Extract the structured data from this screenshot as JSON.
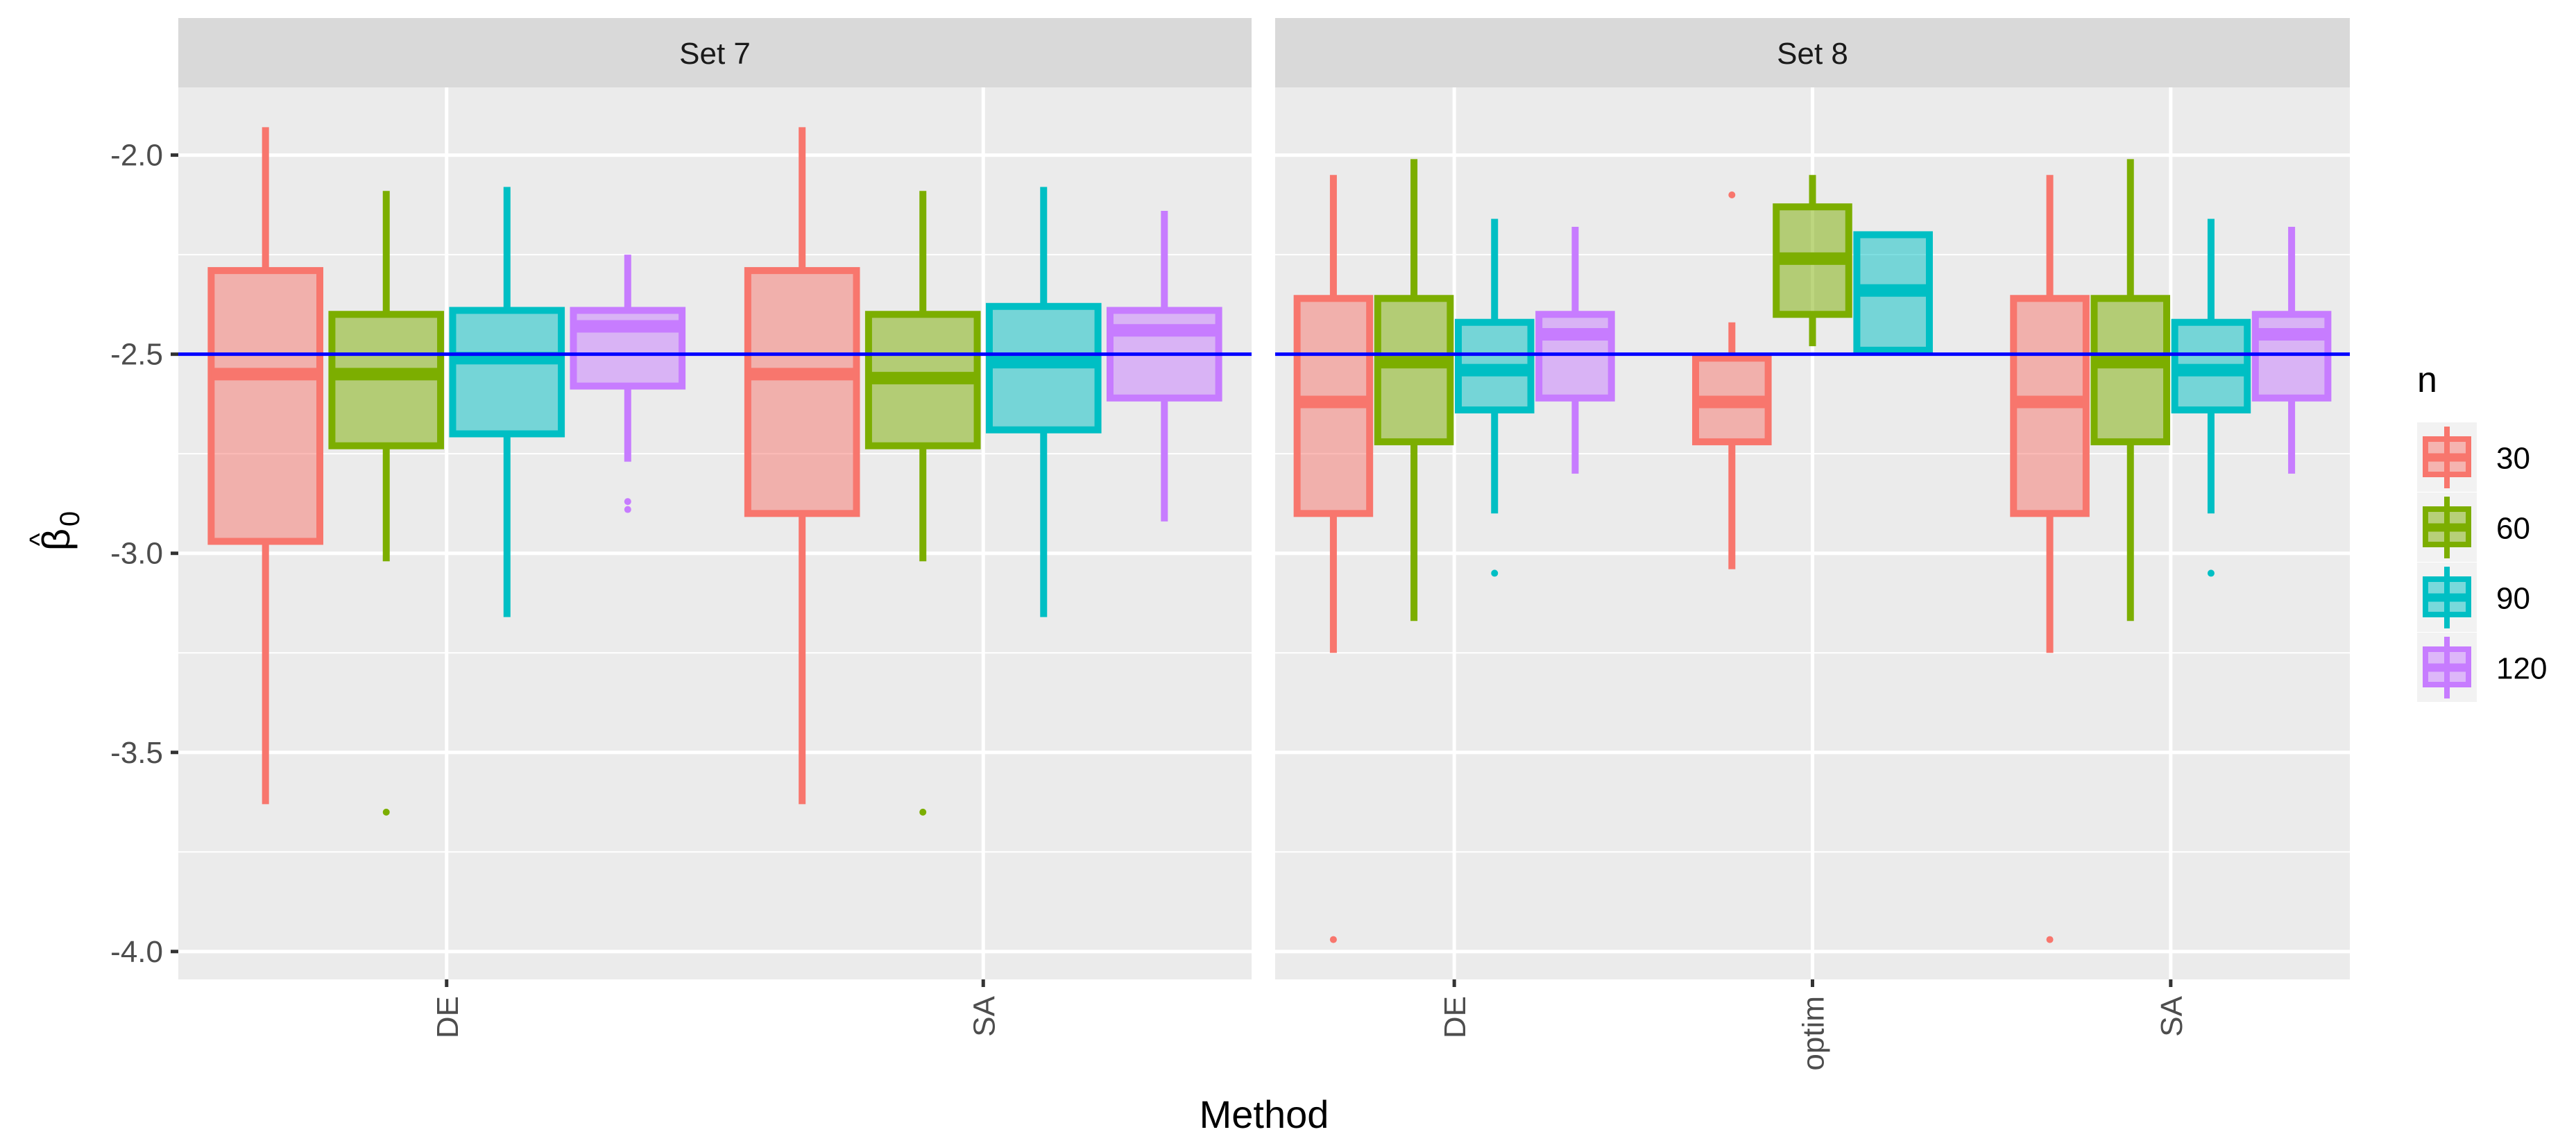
{
  "chart_data": {
    "type": "boxplot",
    "xlabel": "Method",
    "ylabel_base": "β",
    "ylabel_hat": "^",
    "ylabel_sub": "0",
    "ylim": [
      -4.07,
      -1.83
    ],
    "y_ticks": [
      -2.0,
      -2.5,
      -3.0,
      -3.5,
      -4.0
    ],
    "y_tick_labels": [
      "-2.0",
      "-2.5",
      "-3.0",
      "-3.5",
      "-4.0"
    ],
    "y_minor_ticks": [
      -2.25,
      -2.75,
      -3.25,
      -3.75
    ],
    "reference_line": {
      "y": -2.5,
      "color": "#0000ff"
    },
    "legend": {
      "title": "n",
      "position": "right",
      "entries": [
        {
          "label": "30",
          "color": "#F8766D"
        },
        {
          "label": "60",
          "color": "#7CAE00"
        },
        {
          "label": "90",
          "color": "#00BFC4"
        },
        {
          "label": "120",
          "color": "#C77CFF"
        }
      ]
    },
    "panels": [
      {
        "title": "Set 7",
        "categories": [
          "DE",
          "SA"
        ],
        "groups": [
          {
            "method": "DE",
            "boxes": [
              {
                "n": "30",
                "min": -3.63,
                "q1": -2.97,
                "median": -2.55,
                "q3": -2.29,
                "max": -1.93,
                "outliers": []
              },
              {
                "n": "60",
                "min": -3.02,
                "q1": -2.73,
                "median": -2.55,
                "q3": -2.4,
                "max": -2.09,
                "outliers": [
                  -3.65
                ]
              },
              {
                "n": "90",
                "min": -3.16,
                "q1": -2.7,
                "median": -2.51,
                "q3": -2.39,
                "max": -2.08,
                "outliers": []
              },
              {
                "n": "120",
                "min": -2.77,
                "q1": -2.58,
                "median": -2.43,
                "q3": -2.39,
                "max": -2.25,
                "outliers": [
                  -2.87,
                  -2.89
                ]
              }
            ]
          },
          {
            "method": "SA",
            "boxes": [
              {
                "n": "30",
                "min": -3.63,
                "q1": -2.9,
                "median": -2.55,
                "q3": -2.29,
                "max": -1.93,
                "outliers": []
              },
              {
                "n": "60",
                "min": -3.02,
                "q1": -2.73,
                "median": -2.56,
                "q3": -2.4,
                "max": -2.09,
                "outliers": [
                  -3.65
                ]
              },
              {
                "n": "90",
                "min": -3.16,
                "q1": -2.69,
                "median": -2.52,
                "q3": -2.38,
                "max": -2.08,
                "outliers": []
              },
              {
                "n": "120",
                "min": -2.92,
                "q1": -2.61,
                "median": -2.44,
                "q3": -2.39,
                "max": -2.14,
                "outliers": []
              }
            ]
          }
        ]
      },
      {
        "title": "Set 8",
        "categories": [
          "DE",
          "optim",
          "SA"
        ],
        "groups": [
          {
            "method": "DE",
            "boxes": [
              {
                "n": "30",
                "min": -3.25,
                "q1": -2.9,
                "median": -2.62,
                "q3": -2.36,
                "max": -2.05,
                "outliers": [
                  -3.97
                ]
              },
              {
                "n": "60",
                "min": -3.17,
                "q1": -2.72,
                "median": -2.52,
                "q3": -2.36,
                "max": -2.01,
                "outliers": []
              },
              {
                "n": "90",
                "min": -2.9,
                "q1": -2.64,
                "median": -2.54,
                "q3": -2.42,
                "max": -2.16,
                "outliers": [
                  -3.05
                ]
              },
              {
                "n": "120",
                "min": -2.8,
                "q1": -2.61,
                "median": -2.45,
                "q3": -2.4,
                "max": -2.18,
                "outliers": []
              }
            ]
          },
          {
            "method": "optim",
            "boxes": [
              {
                "n": "30",
                "min": -3.04,
                "q1": -2.72,
                "median": -2.62,
                "q3": -2.51,
                "max": -2.42,
                "outliers": [
                  -2.1
                ]
              },
              {
                "n": "60",
                "min": -2.48,
                "q1": -2.4,
                "median": -2.26,
                "q3": -2.13,
                "max": -2.05,
                "outliers": []
              },
              {
                "n": "90",
                "min": -2.49,
                "q1": -2.49,
                "median": -2.34,
                "q3": -2.2,
                "max": -2.2,
                "outliers": []
              }
            ]
          },
          {
            "method": "SA",
            "boxes": [
              {
                "n": "30",
                "min": -3.25,
                "q1": -2.9,
                "median": -2.62,
                "q3": -2.36,
                "max": -2.05,
                "outliers": [
                  -3.97
                ]
              },
              {
                "n": "60",
                "min": -3.17,
                "q1": -2.72,
                "median": -2.52,
                "q3": -2.36,
                "max": -2.01,
                "outliers": []
              },
              {
                "n": "90",
                "min": -2.9,
                "q1": -2.64,
                "median": -2.54,
                "q3": -2.42,
                "max": -2.16,
                "outliers": [
                  -3.05
                ]
              },
              {
                "n": "120",
                "min": -2.8,
                "q1": -2.61,
                "median": -2.45,
                "q3": -2.4,
                "max": -2.18,
                "outliers": []
              }
            ]
          }
        ]
      }
    ]
  }
}
